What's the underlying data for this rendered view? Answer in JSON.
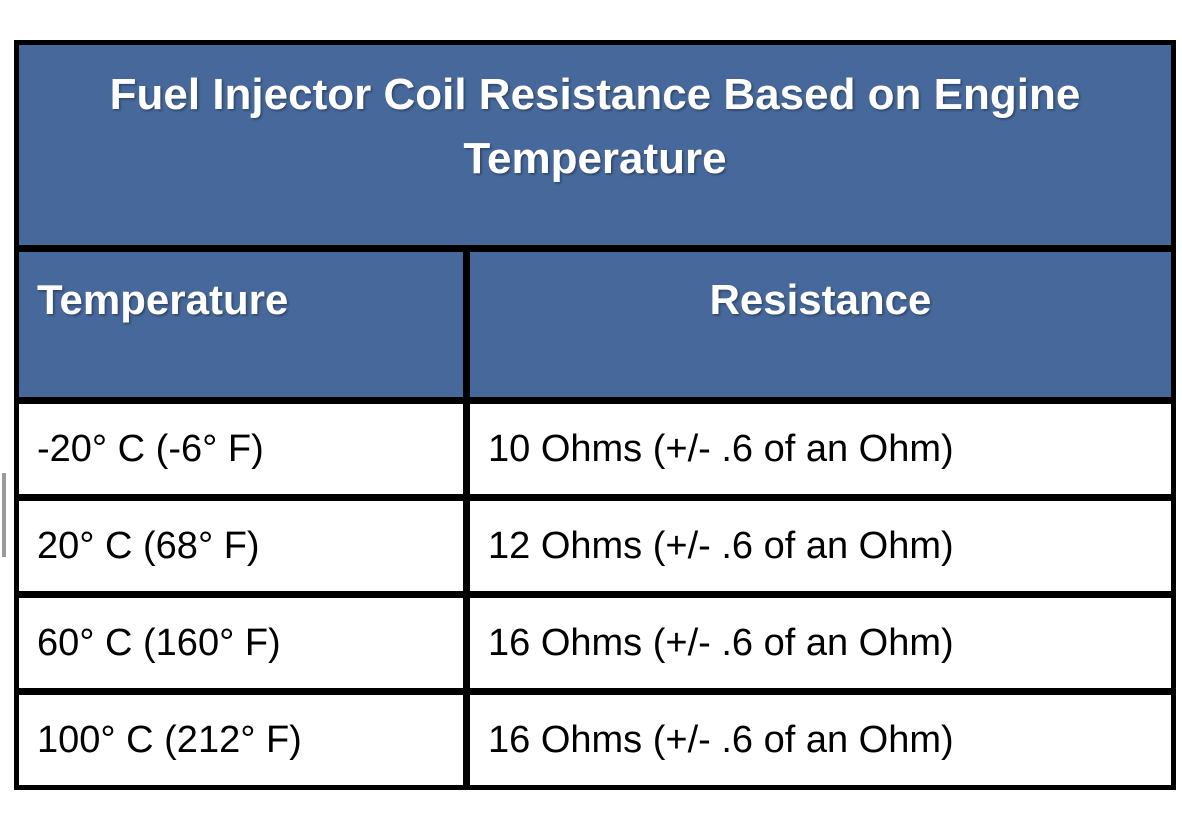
{
  "document": {
    "background_color": "#ffffff",
    "artifact": {
      "text_cursor_color": "#9a9a9a"
    }
  },
  "table": {
    "title": "Fuel Injector Coil Resistance Based on Engine Temperature",
    "style": {
      "header_bg_color": "#46689B",
      "header_text_color": "#ffffff",
      "body_bg_color": "#ffffff",
      "body_text_color": "#000000",
      "border_color": "#000000"
    },
    "columns": [
      {
        "label": "Temperature"
      },
      {
        "label": "Resistance"
      }
    ],
    "rows": [
      {
        "temperature": "-20° C (-6° F)",
        "resistance": "10 Ohms (+/- .6 of an Ohm)"
      },
      {
        "temperature": "20° C (68° F)",
        "resistance": "12 Ohms (+/- .6 of an Ohm)"
      },
      {
        "temperature": "60° C (160° F)",
        "resistance": "16 Ohms (+/- .6 of an Ohm)"
      },
      {
        "temperature": "100° C (212° F)",
        "resistance": "16 Ohms (+/- .6 of an Ohm)"
      }
    ]
  },
  "chart_data": {
    "type": "table",
    "title": "Fuel Injector Coil Resistance Based on Engine Temperature",
    "columns": [
      "Temperature",
      "Resistance"
    ],
    "rows": [
      [
        "-20° C (-6° F)",
        "10 Ohms (+/- .6 of an Ohm)"
      ],
      [
        "20° C (68° F)",
        "12 Ohms (+/- .6 of an Ohm)"
      ],
      [
        "60° C (160° F)",
        "16 Ohms (+/- .6 of an Ohm)"
      ],
      [
        "100° C (212° F)",
        "16 Ohms (+/- .6 of an Ohm)"
      ]
    ]
  }
}
